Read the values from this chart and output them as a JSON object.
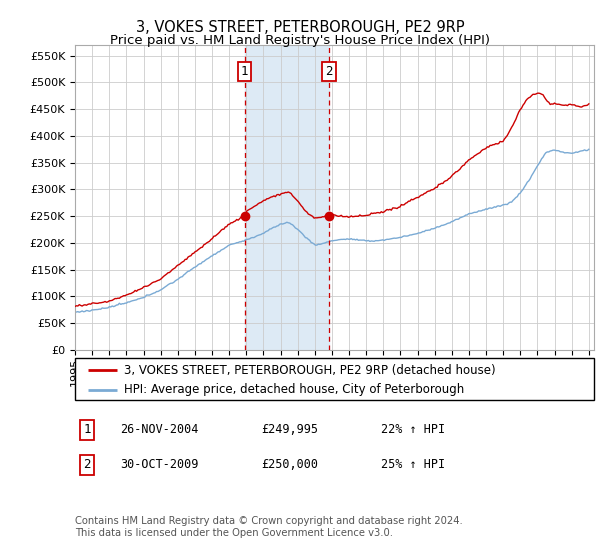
{
  "title": "3, VOKES STREET, PETERBOROUGH, PE2 9RP",
  "subtitle": "Price paid vs. HM Land Registry's House Price Index (HPI)",
  "ylim": [
    0,
    570000
  ],
  "yticks": [
    0,
    50000,
    100000,
    150000,
    200000,
    250000,
    300000,
    350000,
    400000,
    450000,
    500000,
    550000
  ],
  "ytick_labels": [
    "£0",
    "£50K",
    "£100K",
    "£150K",
    "£200K",
    "£250K",
    "£300K",
    "£350K",
    "£400K",
    "£450K",
    "£500K",
    "£550K"
  ],
  "background_color": "#ffffff",
  "plot_bg_color": "#ffffff",
  "grid_color": "#cccccc",
  "red_line_color": "#cc0000",
  "blue_line_color": "#7aaad4",
  "sale1_year": 2004.9,
  "sale1_price": 249995,
  "sale2_year": 2009.83,
  "sale2_price": 250000,
  "vline_color": "#cc0000",
  "highlight_color": "#ddeaf5",
  "legend_label_red": "3, VOKES STREET, PETERBOROUGH, PE2 9RP (detached house)",
  "legend_label_blue": "HPI: Average price, detached house, City of Peterborough",
  "annotation1_date": "26-NOV-2004",
  "annotation1_price": "£249,995",
  "annotation1_hpi": "22% ↑ HPI",
  "annotation2_date": "30-OCT-2009",
  "annotation2_price": "£250,000",
  "annotation2_hpi": "25% ↑ HPI",
  "footer_text": "Contains HM Land Registry data © Crown copyright and database right 2024.\nThis data is licensed under the Open Government Licence v3.0.",
  "title_fontsize": 10.5,
  "subtitle_fontsize": 9.5,
  "tick_fontsize": 8,
  "legend_fontsize": 8.5,
  "annotation_fontsize": 8.5
}
